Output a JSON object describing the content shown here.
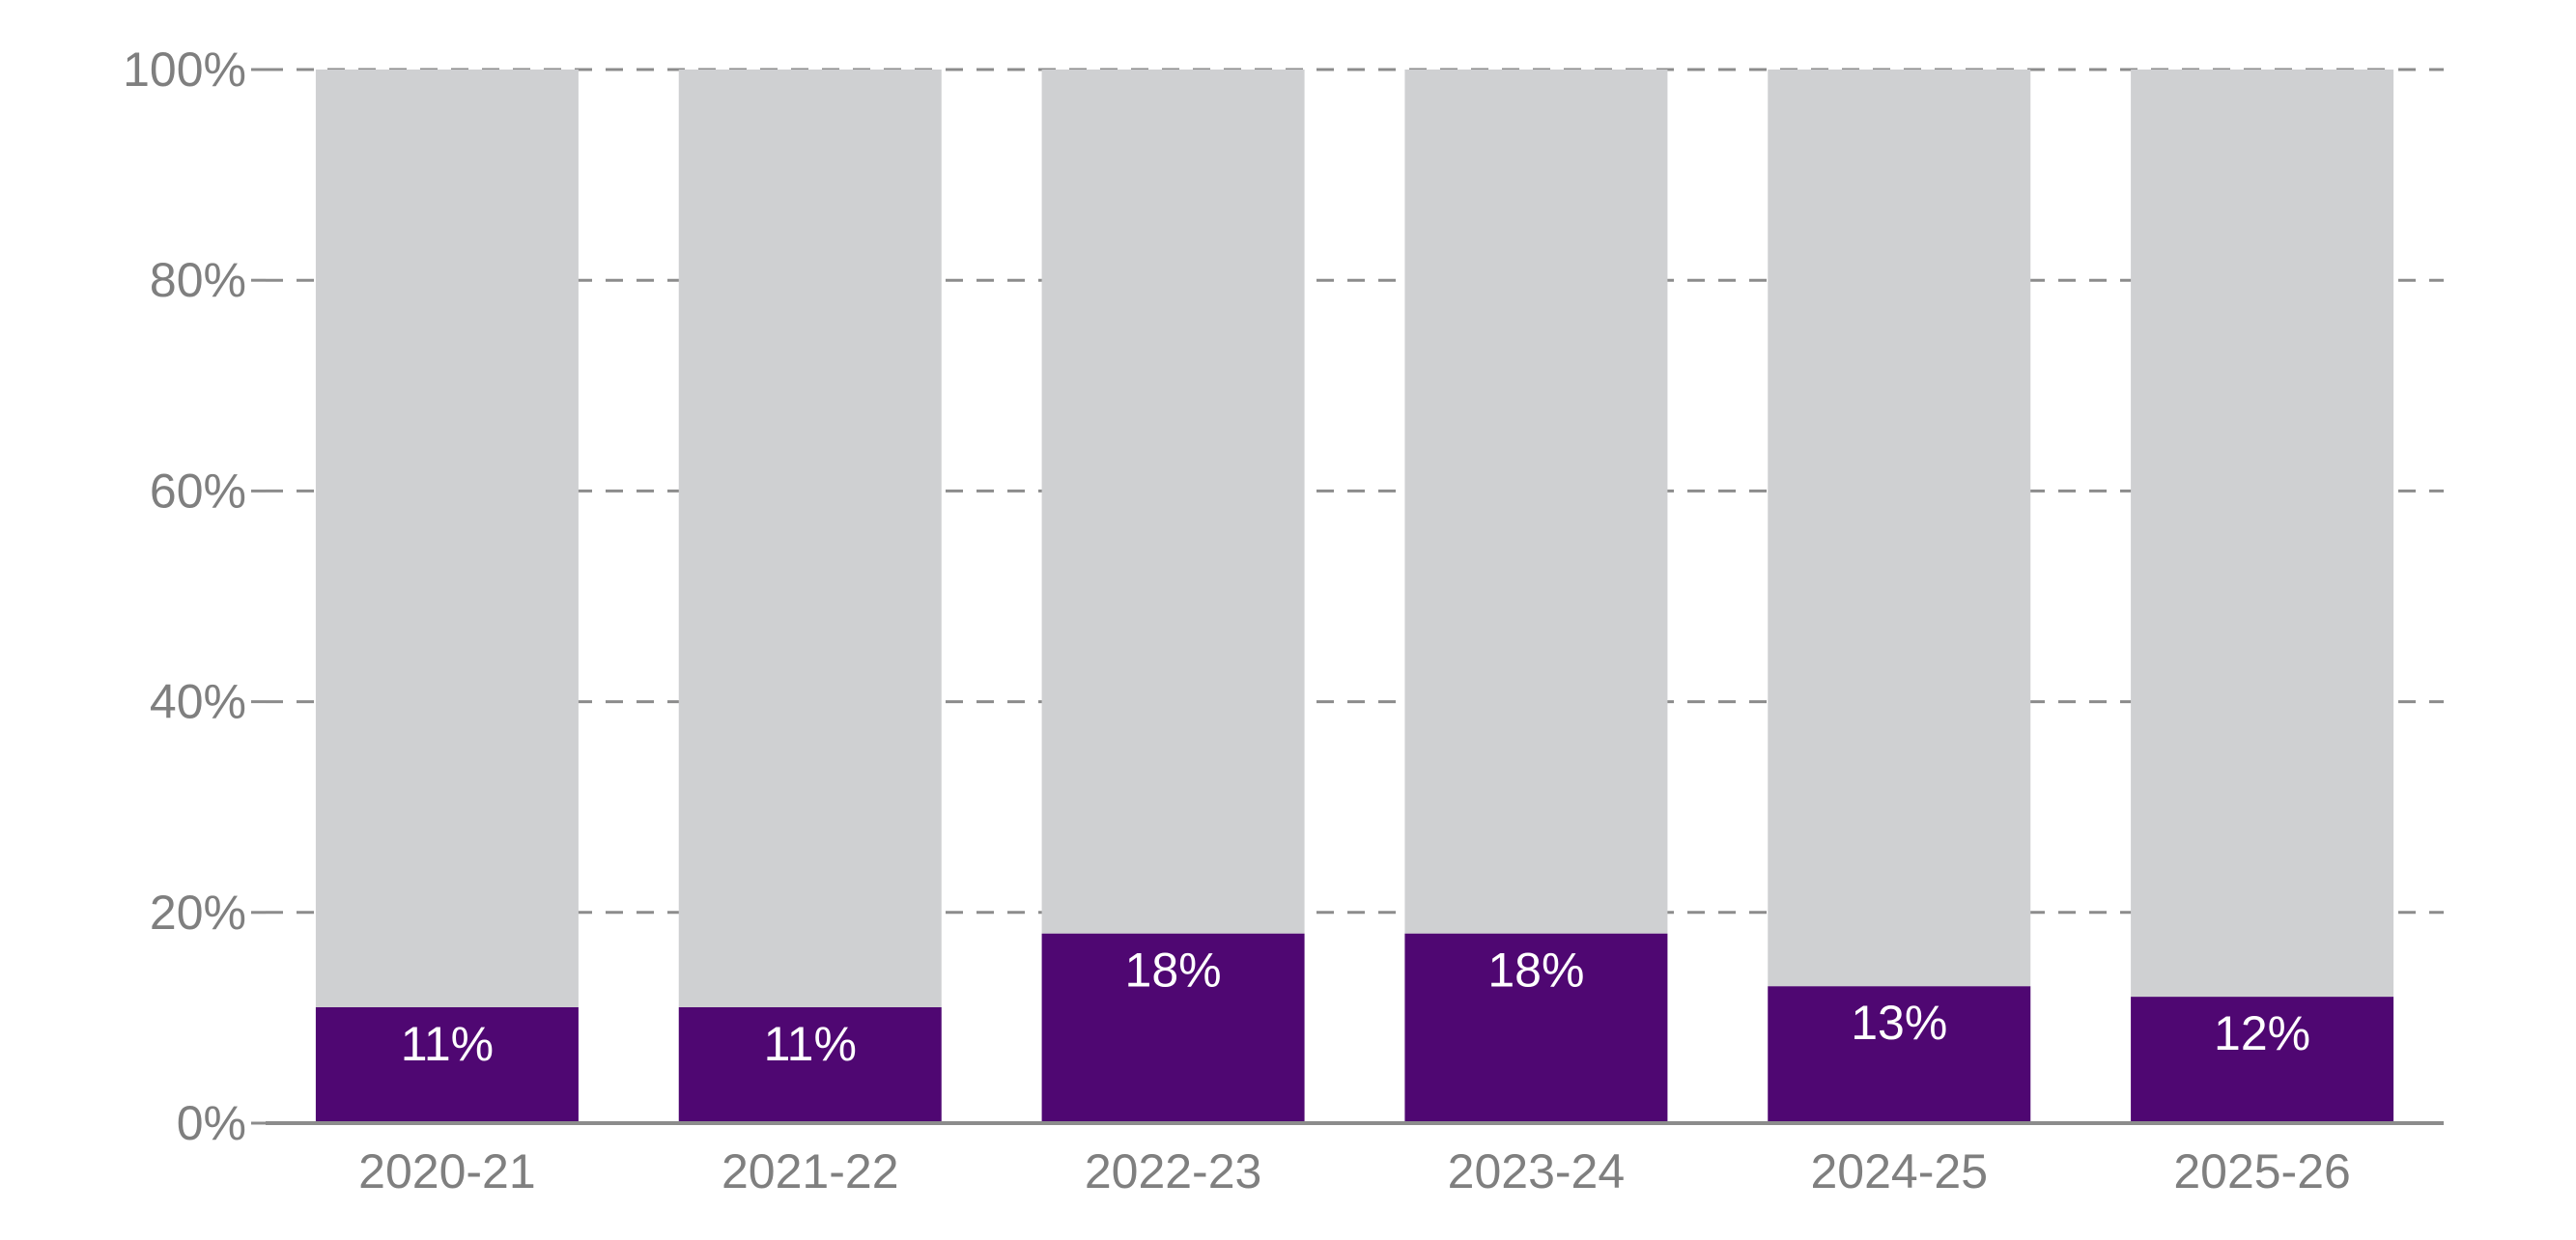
{
  "chart_data": {
    "type": "bar",
    "stacked": true,
    "percent_stacked": true,
    "categories": [
      "2020-21",
      "2021-22",
      "2022-23",
      "2023-24",
      "2024-25",
      "2025-26"
    ],
    "series": [
      {
        "values": [
          11,
          11,
          18,
          18,
          13,
          12
        ],
        "color": "#4f0772",
        "data_labels": [
          "11%",
          "11%",
          "18%",
          "18%",
          "13%",
          "12%"
        ]
      },
      {
        "values": [
          89,
          89,
          82,
          82,
          87,
          88
        ],
        "color": "#cfd0d2"
      }
    ],
    "y_ticks": [
      "0%",
      "20%",
      "40%",
      "60%",
      "80%",
      "100%"
    ],
    "ylim": [
      0,
      100
    ],
    "grid": "dashed horizontal",
    "title": "",
    "xlabel": "",
    "ylabel": ""
  }
}
